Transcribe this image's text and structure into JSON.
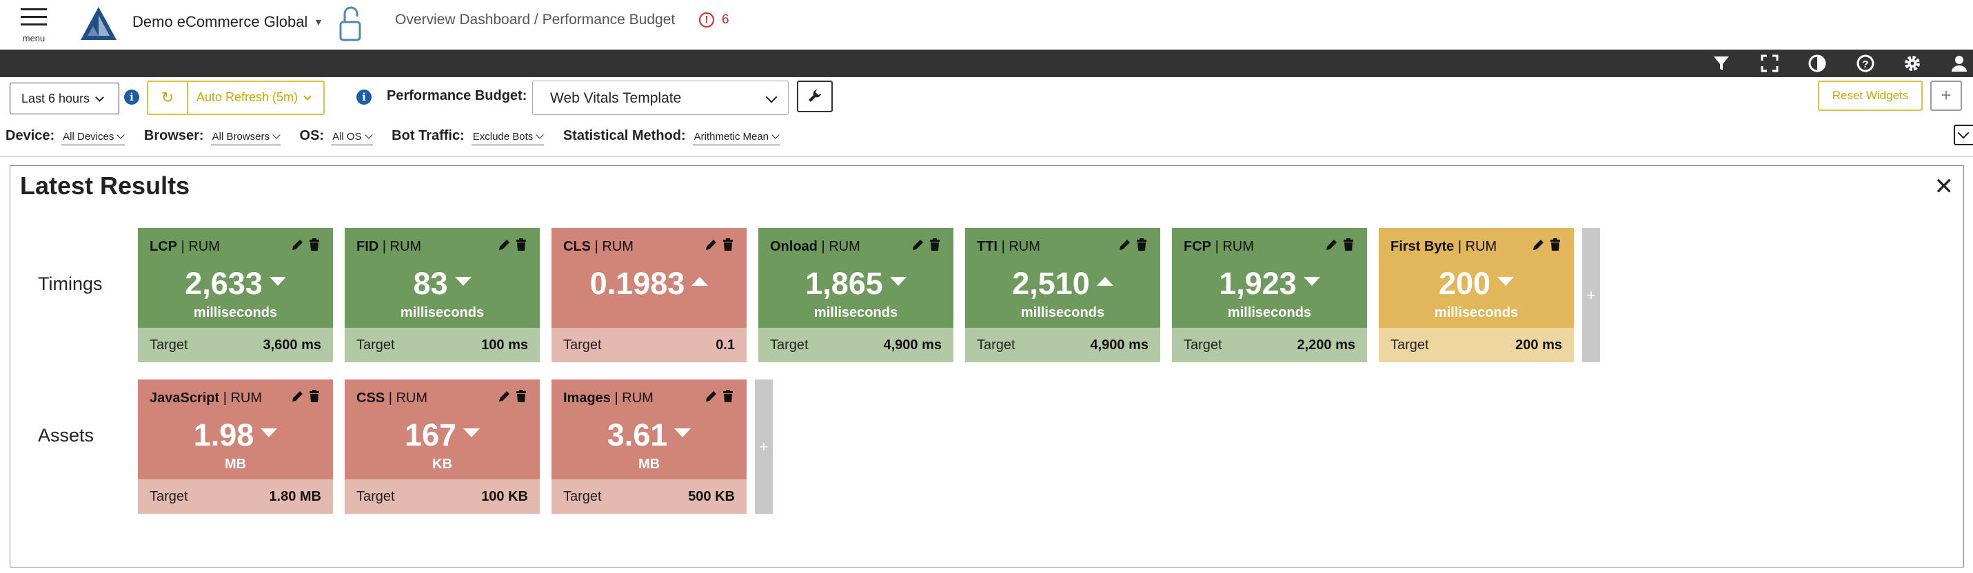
{
  "header": {
    "menu_label": "menu",
    "app_name": "Demo eCommerce Global",
    "breadcrumb": "Overview Dashboard / Performance Budget",
    "alert_count": "6",
    "colors": {
      "alert": "#d62728",
      "logo": "#1f4f86",
      "lock": "#4a8ab5"
    }
  },
  "toolbar_icons": [
    "filter-icon",
    "fullscreen-icon",
    "contrast-icon",
    "help-icon",
    "gear-icon",
    "user-icon"
  ],
  "controls": {
    "time_range": "Last 6 hours",
    "auto_refresh": "Auto Refresh (5m)",
    "budget_label": "Performance Budget:",
    "budget_value": "Web Vitals Template",
    "reset_label": "Reset Widgets",
    "add_label": "+"
  },
  "filters": [
    {
      "label": "Device:",
      "value": "All Devices"
    },
    {
      "label": "Browser:",
      "value": "All Browsers"
    },
    {
      "label": "OS:",
      "value": "All OS"
    },
    {
      "label": "Bot Traffic:",
      "value": "Exclude Bots"
    },
    {
      "label": "Statistical Method:",
      "value": "Arithmetic Mean"
    }
  ],
  "panel": {
    "title": "Latest Results",
    "close": "✕",
    "rows": [
      {
        "label": "Timings",
        "cards": [
          {
            "metric": "LCP",
            "source": "| RUM",
            "value": "2,633",
            "trend": "down",
            "unit": "milliseconds",
            "target_label": "Target",
            "target": "3,600 ms",
            "status": "good"
          },
          {
            "metric": "FID",
            "source": "| RUM",
            "value": "83",
            "trend": "down",
            "unit": "milliseconds",
            "target_label": "Target",
            "target": "100 ms",
            "status": "good"
          },
          {
            "metric": "CLS",
            "source": "| RUM",
            "value": "0.1983",
            "trend": "up",
            "unit": "",
            "target_label": "Target",
            "target": "0.1",
            "status": "bad"
          },
          {
            "metric": "Onload",
            "source": "| RUM",
            "value": "1,865",
            "trend": "down",
            "unit": "milliseconds",
            "target_label": "Target",
            "target": "4,900 ms",
            "status": "good"
          },
          {
            "metric": "TTI",
            "source": "| RUM",
            "value": "2,510",
            "trend": "up",
            "unit": "milliseconds",
            "target_label": "Target",
            "target": "4,900 ms",
            "status": "good"
          },
          {
            "metric": "FCP",
            "source": "| RUM",
            "value": "1,923",
            "trend": "down",
            "unit": "milliseconds",
            "target_label": "Target",
            "target": "2,200 ms",
            "status": "good"
          },
          {
            "metric": "First Byte",
            "source": "| RUM",
            "value": "200",
            "trend": "down",
            "unit": "milliseconds",
            "target_label": "Target",
            "target": "200 ms",
            "status": "warn"
          }
        ]
      },
      {
        "label": "Assets",
        "cards": [
          {
            "metric": "JavaScript",
            "source": "| RUM",
            "value": "1.98",
            "trend": "down",
            "unit": "MB",
            "target_label": "Target",
            "target": "1.80 MB",
            "status": "bad"
          },
          {
            "metric": "CSS",
            "source": "| RUM",
            "value": "167",
            "trend": "down",
            "unit": "KB",
            "target_label": "Target",
            "target": "100 KB",
            "status": "bad"
          },
          {
            "metric": "Images",
            "source": "| RUM",
            "value": "3.61",
            "trend": "down",
            "unit": "MB",
            "target_label": "Target",
            "target": "500 KB",
            "status": "bad"
          }
        ]
      }
    ],
    "add_tile": "+"
  }
}
